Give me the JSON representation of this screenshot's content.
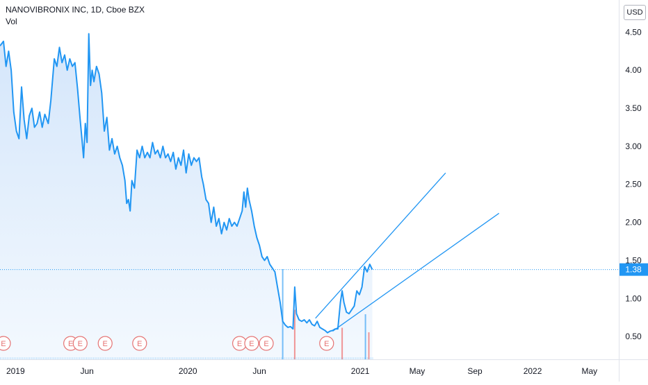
{
  "header": {
    "symbol_line": "NANOVIBRONIX INC, 1D, Cboe BZX",
    "volume_label": "Vol",
    "currency_button": "USD"
  },
  "colors": {
    "line": "#2196f3",
    "area_top": "#cfe3fa",
    "area_bottom": "#f2f8fe",
    "trendline": "#2196f3",
    "earnings_marker": "#e57373",
    "last_price_bg": "#2196f3",
    "volume_up": "#2196f3",
    "volume_down": "#ef5350"
  },
  "chart_data": {
    "type": "area",
    "title": "NANOVIBRONIX INC, 1D, Cboe BZX",
    "xlabel": "",
    "ylabel": "",
    "xlim": [
      2018.91,
      2022.5
    ],
    "ylim": [
      0.2,
      4.85
    ],
    "grid": false,
    "y_ticks": [
      {
        "value": 0.5,
        "label": "0.50"
      },
      {
        "value": 1.0,
        "label": "1.00"
      },
      {
        "value": 1.5,
        "label": "1.50"
      },
      {
        "value": 2.0,
        "label": "2.00"
      },
      {
        "value": 2.5,
        "label": "2.50"
      },
      {
        "value": 3.0,
        "label": "3.00"
      },
      {
        "value": 3.5,
        "label": "3.50"
      },
      {
        "value": 4.0,
        "label": "4.00"
      },
      {
        "value": 4.5,
        "label": "4.50"
      }
    ],
    "x_ticks": [
      {
        "value": 2019.0,
        "label": "2019"
      },
      {
        "value": 2019.415,
        "label": "Jun"
      },
      {
        "value": 2020.0,
        "label": "2020"
      },
      {
        "value": 2020.415,
        "label": "Jun"
      },
      {
        "value": 2021.0,
        "label": "2021"
      },
      {
        "value": 2021.33,
        "label": "May"
      },
      {
        "value": 2021.665,
        "label": "Sep"
      },
      {
        "value": 2022.0,
        "label": "2022"
      },
      {
        "value": 2022.33,
        "label": "May"
      }
    ],
    "last_price": {
      "value": 1.38,
      "label": "1.38"
    },
    "series": [
      {
        "points": [
          [
            2018.91,
            4.32
          ],
          [
            2018.93,
            4.38
          ],
          [
            2018.945,
            4.05
          ],
          [
            2018.96,
            4.25
          ],
          [
            2018.975,
            4.0
          ],
          [
            2018.99,
            3.45
          ],
          [
            2019.005,
            3.2
          ],
          [
            2019.02,
            3.1
          ],
          [
            2019.035,
            3.78
          ],
          [
            2019.05,
            3.35
          ],
          [
            2019.065,
            3.1
          ],
          [
            2019.08,
            3.4
          ],
          [
            2019.095,
            3.5
          ],
          [
            2019.11,
            3.25
          ],
          [
            2019.125,
            3.3
          ],
          [
            2019.14,
            3.45
          ],
          [
            2019.155,
            3.25
          ],
          [
            2019.17,
            3.42
          ],
          [
            2019.19,
            3.3
          ],
          [
            2019.205,
            3.6
          ],
          [
            2019.225,
            4.15
          ],
          [
            2019.24,
            4.05
          ],
          [
            2019.255,
            4.3
          ],
          [
            2019.27,
            4.1
          ],
          [
            2019.285,
            4.2
          ],
          [
            2019.3,
            4.0
          ],
          [
            2019.315,
            4.15
          ],
          [
            2019.33,
            4.05
          ],
          [
            2019.345,
            4.1
          ],
          [
            2019.36,
            3.75
          ],
          [
            2019.375,
            3.35
          ],
          [
            2019.385,
            3.1
          ],
          [
            2019.395,
            2.85
          ],
          [
            2019.405,
            3.3
          ],
          [
            2019.415,
            3.05
          ],
          [
            2019.425,
            4.48
          ],
          [
            2019.435,
            3.8
          ],
          [
            2019.445,
            4.0
          ],
          [
            2019.455,
            3.85
          ],
          [
            2019.47,
            4.05
          ],
          [
            2019.485,
            3.95
          ],
          [
            2019.5,
            3.7
          ],
          [
            2019.515,
            3.2
          ],
          [
            2019.53,
            3.38
          ],
          [
            2019.545,
            2.95
          ],
          [
            2019.56,
            3.1
          ],
          [
            2019.575,
            2.9
          ],
          [
            2019.59,
            3.0
          ],
          [
            2019.605,
            2.85
          ],
          [
            2019.62,
            2.75
          ],
          [
            2019.635,
            2.55
          ],
          [
            2019.645,
            2.25
          ],
          [
            2019.655,
            2.3
          ],
          [
            2019.665,
            2.15
          ],
          [
            2019.675,
            2.55
          ],
          [
            2019.69,
            2.45
          ],
          [
            2019.705,
            2.95
          ],
          [
            2019.72,
            2.85
          ],
          [
            2019.735,
            3.0
          ],
          [
            2019.75,
            2.85
          ],
          [
            2019.765,
            2.92
          ],
          [
            2019.78,
            2.85
          ],
          [
            2019.795,
            3.05
          ],
          [
            2019.81,
            2.9
          ],
          [
            2019.825,
            2.95
          ],
          [
            2019.84,
            2.85
          ],
          [
            2019.855,
            3.0
          ],
          [
            2019.87,
            2.85
          ],
          [
            2019.885,
            2.9
          ],
          [
            2019.9,
            2.8
          ],
          [
            2019.915,
            2.92
          ],
          [
            2019.93,
            2.7
          ],
          [
            2019.945,
            2.85
          ],
          [
            2019.96,
            2.75
          ],
          [
            2019.975,
            2.95
          ],
          [
            2019.99,
            2.65
          ],
          [
            2020.005,
            2.9
          ],
          [
            2020.02,
            2.75
          ],
          [
            2020.035,
            2.85
          ],
          [
            2020.05,
            2.8
          ],
          [
            2020.065,
            2.85
          ],
          [
            2020.08,
            2.6
          ],
          [
            2020.09,
            2.5
          ],
          [
            2020.105,
            2.3
          ],
          [
            2020.12,
            2.25
          ],
          [
            2020.135,
            2.0
          ],
          [
            2020.15,
            2.2
          ],
          [
            2020.165,
            1.95
          ],
          [
            2020.18,
            2.05
          ],
          [
            2020.195,
            1.85
          ],
          [
            2020.21,
            2.0
          ],
          [
            2020.225,
            1.9
          ],
          [
            2020.24,
            2.05
          ],
          [
            2020.255,
            1.95
          ],
          [
            2020.27,
            2.0
          ],
          [
            2020.285,
            1.95
          ],
          [
            2020.3,
            2.05
          ],
          [
            2020.315,
            2.15
          ],
          [
            2020.325,
            2.4
          ],
          [
            2020.335,
            2.2
          ],
          [
            2020.345,
            2.45
          ],
          [
            2020.355,
            2.3
          ],
          [
            2020.37,
            2.15
          ],
          [
            2020.385,
            1.95
          ],
          [
            2020.4,
            1.8
          ],
          [
            2020.415,
            1.7
          ],
          [
            2020.43,
            1.55
          ],
          [
            2020.445,
            1.5
          ],
          [
            2020.46,
            1.55
          ],
          [
            2020.475,
            1.45
          ],
          [
            2020.49,
            1.4
          ],
          [
            2020.505,
            1.35
          ],
          [
            2020.52,
            1.15
          ],
          [
            2020.535,
            0.95
          ],
          [
            2020.55,
            0.7
          ],
          [
            2020.565,
            0.65
          ],
          [
            2020.58,
            0.62
          ],
          [
            2020.595,
            0.63
          ],
          [
            2020.61,
            0.6
          ],
          [
            2020.62,
            1.15
          ],
          [
            2020.63,
            0.8
          ],
          [
            2020.645,
            0.72
          ],
          [
            2020.66,
            0.7
          ],
          [
            2020.675,
            0.72
          ],
          [
            2020.69,
            0.68
          ],
          [
            2020.705,
            0.72
          ],
          [
            2020.72,
            0.66
          ],
          [
            2020.735,
            0.64
          ],
          [
            2020.75,
            0.7
          ],
          [
            2020.765,
            0.62
          ],
          [
            2020.78,
            0.6
          ],
          [
            2020.795,
            0.58
          ],
          [
            2020.81,
            0.55
          ],
          [
            2020.825,
            0.57
          ],
          [
            2020.84,
            0.58
          ],
          [
            2020.855,
            0.6
          ],
          [
            2020.87,
            0.6
          ],
          [
            2020.885,
            0.95
          ],
          [
            2020.895,
            1.1
          ],
          [
            2020.905,
            0.95
          ],
          [
            2020.92,
            0.82
          ],
          [
            2020.935,
            0.8
          ],
          [
            2020.95,
            0.85
          ],
          [
            2020.965,
            0.9
          ],
          [
            2020.98,
            1.1
          ],
          [
            2020.995,
            1.05
          ],
          [
            2021.01,
            1.15
          ],
          [
            2021.025,
            1.42
          ],
          [
            2021.04,
            1.35
          ],
          [
            2021.055,
            1.45
          ],
          [
            2021.07,
            1.38
          ]
        ]
      }
    ],
    "trendlines": [
      {
        "from": [
          2020.74,
          0.74
        ],
        "to": [
          2021.495,
          2.65
        ]
      },
      {
        "from": [
          2020.84,
          0.57
        ],
        "to": [
          2021.805,
          2.12
        ]
      }
    ],
    "earnings_markers": {
      "label": "E",
      "x": [
        2018.93,
        2019.32,
        2019.375,
        2019.52,
        2019.72,
        2020.3,
        2020.37,
        2020.455,
        2020.805
      ]
    },
    "volume": {
      "bars": [
        {
          "x": 2020.55,
          "height": 1.0,
          "up": true
        },
        {
          "x": 2020.62,
          "height": 0.55,
          "up": false
        },
        {
          "x": 2020.895,
          "height": 0.35,
          "up": false
        },
        {
          "x": 2021.03,
          "height": 0.5,
          "up": true
        },
        {
          "x": 2021.05,
          "height": 0.3,
          "up": false
        }
      ]
    }
  }
}
